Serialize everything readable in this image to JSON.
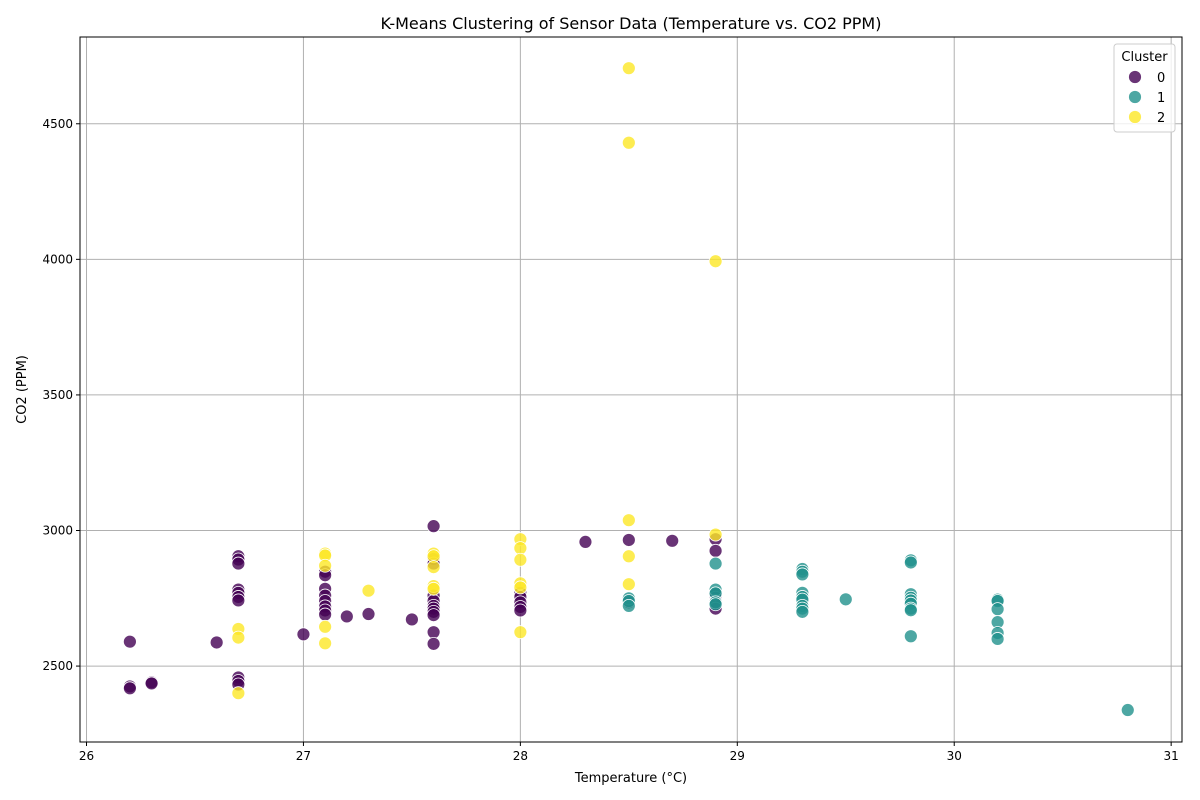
{
  "chart_data": {
    "type": "scatter",
    "title": "K-Means Clustering of Sensor Data (Temperature vs. CO2 PPM)",
    "xlabel": "Temperature (°C)",
    "ylabel": "CO2 (PPM)",
    "xlim": [
      25.97,
      31.05
    ],
    "ylim": [
      2220,
      4820
    ],
    "xticks": [
      26,
      27,
      28,
      29,
      30,
      31
    ],
    "yticks": [
      2500,
      3000,
      3500,
      4000,
      4500
    ],
    "grid": true,
    "legend": {
      "title": "Cluster",
      "position": "top-right",
      "entries": [
        "0",
        "1",
        "2"
      ]
    },
    "colors": {
      "0": "#440154",
      "1": "#21918c",
      "2": "#fde725"
    },
    "series": [
      {
        "name": "0",
        "color": "#440154",
        "points": [
          [
            26.2,
            2590
          ],
          [
            26.2,
            2425
          ],
          [
            26.2,
            2418
          ],
          [
            26.3,
            2440
          ],
          [
            26.3,
            2436
          ],
          [
            26.6,
            2587
          ],
          [
            26.7,
            2905
          ],
          [
            26.7,
            2893
          ],
          [
            26.7,
            2878
          ],
          [
            26.7,
            2782
          ],
          [
            26.7,
            2770
          ],
          [
            26.7,
            2755
          ],
          [
            26.7,
            2742
          ],
          [
            26.7,
            2458
          ],
          [
            26.7,
            2445
          ],
          [
            26.7,
            2432
          ],
          [
            27.0,
            2617
          ],
          [
            27.1,
            2848
          ],
          [
            27.1,
            2835
          ],
          [
            27.1,
            2785
          ],
          [
            27.1,
            2760
          ],
          [
            27.1,
            2740
          ],
          [
            27.1,
            2720
          ],
          [
            27.1,
            2705
          ],
          [
            27.1,
            2690
          ],
          [
            27.2,
            2683
          ],
          [
            27.3,
            2692
          ],
          [
            27.5,
            2672
          ],
          [
            27.6,
            3016
          ],
          [
            27.6,
            2895
          ],
          [
            27.6,
            2878
          ],
          [
            27.6,
            2760
          ],
          [
            27.6,
            2740
          ],
          [
            27.6,
            2722
          ],
          [
            27.6,
            2712
          ],
          [
            27.6,
            2700
          ],
          [
            27.6,
            2688
          ],
          [
            27.6,
            2625
          ],
          [
            27.6,
            2582
          ],
          [
            28.0,
            2770
          ],
          [
            28.0,
            2755
          ],
          [
            28.0,
            2735
          ],
          [
            28.0,
            2718
          ],
          [
            28.0,
            2705
          ],
          [
            28.3,
            2958
          ],
          [
            28.5,
            2965
          ],
          [
            28.5,
            2735
          ],
          [
            28.7,
            2962
          ],
          [
            28.9,
            2968
          ],
          [
            28.9,
            2925
          ],
          [
            28.9,
            2765
          ],
          [
            28.9,
            2752
          ],
          [
            28.9,
            2740
          ],
          [
            28.9,
            2728
          ],
          [
            28.9,
            2712
          ]
        ]
      },
      {
        "name": "1",
        "color": "#21918c",
        "points": [
          [
            28.5,
            2750
          ],
          [
            28.5,
            2740
          ],
          [
            28.5,
            2722
          ],
          [
            28.9,
            2878
          ],
          [
            28.9,
            2782
          ],
          [
            28.9,
            2768
          ],
          [
            28.9,
            2735
          ],
          [
            28.9,
            2728
          ],
          [
            29.3,
            2858
          ],
          [
            29.3,
            2848
          ],
          [
            29.3,
            2838
          ],
          [
            29.3,
            2770
          ],
          [
            29.3,
            2755
          ],
          [
            29.3,
            2745
          ],
          [
            29.3,
            2722
          ],
          [
            29.3,
            2712
          ],
          [
            29.3,
            2700
          ],
          [
            29.5,
            2746
          ],
          [
            29.8,
            2890
          ],
          [
            29.8,
            2882
          ],
          [
            29.8,
            2765
          ],
          [
            29.8,
            2752
          ],
          [
            29.8,
            2742
          ],
          [
            29.8,
            2730
          ],
          [
            29.8,
            2712
          ],
          [
            29.8,
            2706
          ],
          [
            29.8,
            2610
          ],
          [
            30.2,
            2745
          ],
          [
            30.2,
            2740
          ],
          [
            30.2,
            2710
          ],
          [
            30.2,
            2662
          ],
          [
            30.2,
            2622
          ],
          [
            30.2,
            2600
          ],
          [
            30.8,
            2338
          ]
        ]
      },
      {
        "name": "2",
        "color": "#fde725",
        "points": [
          [
            26.7,
            2637
          ],
          [
            26.7,
            2605
          ],
          [
            26.7,
            2400
          ],
          [
            27.1,
            2915
          ],
          [
            27.1,
            2908
          ],
          [
            27.1,
            2870
          ],
          [
            27.1,
            2645
          ],
          [
            27.1,
            2584
          ],
          [
            27.3,
            2778
          ],
          [
            27.6,
            2915
          ],
          [
            27.6,
            2905
          ],
          [
            27.6,
            2865
          ],
          [
            27.6,
            2795
          ],
          [
            27.6,
            2785
          ],
          [
            28.0,
            2968
          ],
          [
            28.0,
            2935
          ],
          [
            28.0,
            2892
          ],
          [
            28.0,
            2805
          ],
          [
            28.0,
            2790
          ],
          [
            28.0,
            2625
          ],
          [
            28.5,
            4705
          ],
          [
            28.5,
            4430
          ],
          [
            28.5,
            3038
          ],
          [
            28.5,
            2905
          ],
          [
            28.5,
            2802
          ],
          [
            28.9,
            3993
          ],
          [
            28.9,
            2985
          ]
        ]
      }
    ]
  }
}
